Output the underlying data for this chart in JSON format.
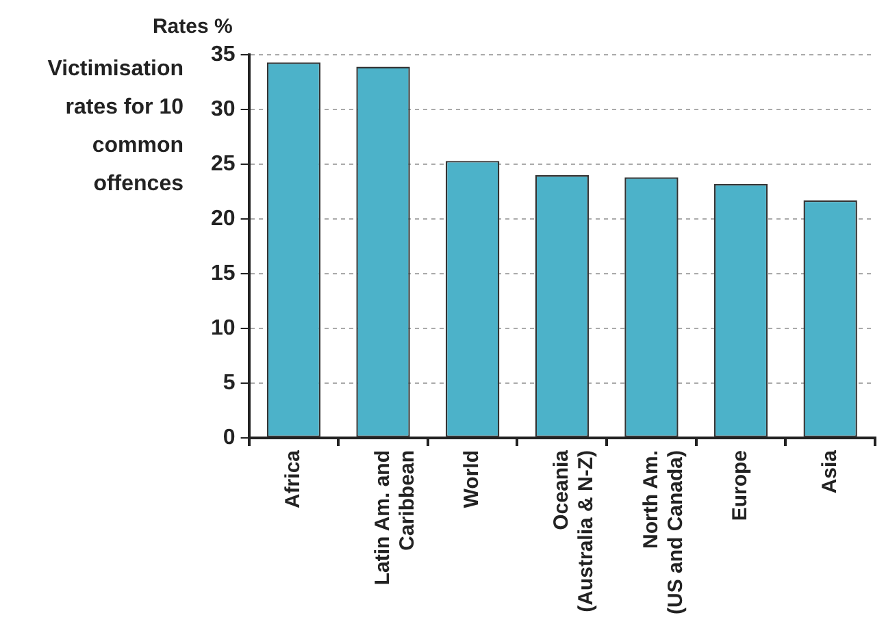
{
  "chart_data": {
    "type": "bar",
    "title": "Victimisation rates for 10 common offences",
    "ylabel": "Rates %",
    "categories": [
      "Africa",
      "Latin Am. and Caribbean",
      "World",
      "Oceania (Australia & N-Z)",
      "North Am. (US and Canada)",
      "Europe",
      "Asia"
    ],
    "values": [
      34.3,
      33.9,
      25.3,
      24.0,
      23.8,
      23.2,
      21.7
    ],
    "color": "#4cb2c9",
    "ylim": [
      0,
      35
    ],
    "yticks": [
      0,
      5,
      10,
      15,
      20,
      25,
      30,
      35
    ],
    "grid": "y"
  }
}
